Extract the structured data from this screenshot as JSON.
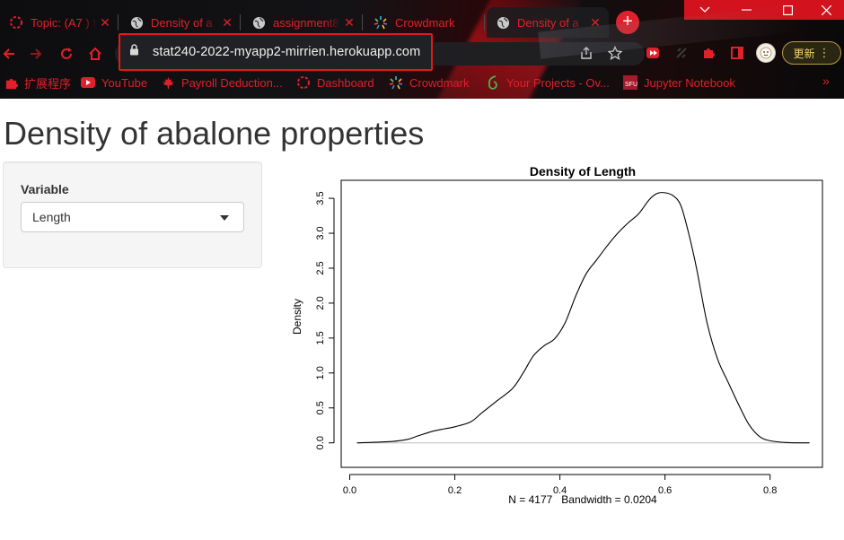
{
  "tabs": [
    {
      "title": "Topic: (A7 ) t",
      "icon": "ring-icon"
    },
    {
      "title": "Density of a",
      "icon": "globe-icon"
    },
    {
      "title": "assignment8",
      "icon": "globe-icon"
    },
    {
      "title": "Crowdmark",
      "icon": "crowdmark-icon"
    },
    {
      "title": "Density of a",
      "icon": "globe-icon"
    }
  ],
  "address_bar": {
    "url": "stat240-2022-myapp2-mirrien.herokuapp.com"
  },
  "update_button": {
    "label": "更新"
  },
  "bookmarks": [
    {
      "label": "扩展程序",
      "icon": "puzzle-icon"
    },
    {
      "label": "YouTube",
      "icon": "youtube-icon"
    },
    {
      "label": "Payroll Deduction...",
      "icon": "maple-leaf-icon"
    },
    {
      "label": "Dashboard",
      "icon": "ring-icon"
    },
    {
      "label": "Crowdmark",
      "icon": "crowdmark-icon"
    },
    {
      "label": "Your Projects - Ov...",
      "icon": "overleaf-icon"
    },
    {
      "label": "Jupyter Notebook",
      "icon": "sfu-icon"
    }
  ],
  "page": {
    "title": "Density of abalone properties",
    "variable_label": "Variable",
    "variable_selected": "Length"
  },
  "colors": {
    "chrome_accent": "#e0202a",
    "window_controls": "#d2121c",
    "highlight_box": "#e21a1a"
  },
  "chart_data": {
    "type": "line",
    "title": "Density of Length",
    "xlabel": "N = 4177   Bandwidth = 0.0204",
    "ylabel": "Density",
    "xlim": [
      0.0,
      0.88
    ],
    "ylim": [
      0.0,
      3.6
    ],
    "x_ticks": [
      0.0,
      0.2,
      0.4,
      0.6,
      0.8
    ],
    "x_tick_labels": [
      "0.0",
      "0.2",
      "0.4",
      "0.6",
      "0.8"
    ],
    "y_ticks": [
      0.0,
      0.5,
      1.0,
      1.5,
      2.0,
      2.5,
      3.0,
      3.5
    ],
    "y_tick_labels": [
      "0.0",
      "0.5",
      "1.0",
      "1.5",
      "2.0",
      "2.5",
      "3.0",
      "3.5"
    ],
    "grid": false,
    "series": [
      {
        "x": [
          0.014,
          0.08,
          0.11,
          0.13,
          0.16,
          0.18,
          0.2,
          0.23,
          0.25,
          0.28,
          0.31,
          0.33,
          0.35,
          0.37,
          0.39,
          0.41,
          0.43,
          0.45,
          0.47,
          0.49,
          0.51,
          0.53,
          0.55,
          0.57,
          0.585,
          0.6,
          0.615,
          0.63,
          0.645,
          0.66,
          0.68,
          0.7,
          0.72,
          0.74,
          0.76,
          0.78,
          0.8,
          0.83,
          0.86,
          0.875
        ],
        "y": [
          0.0,
          0.02,
          0.05,
          0.1,
          0.17,
          0.2,
          0.23,
          0.3,
          0.42,
          0.6,
          0.78,
          1.0,
          1.25,
          1.39,
          1.49,
          1.72,
          2.1,
          2.42,
          2.62,
          2.82,
          3.0,
          3.15,
          3.28,
          3.48,
          3.57,
          3.58,
          3.54,
          3.4,
          3.0,
          2.5,
          1.72,
          1.2,
          0.87,
          0.55,
          0.26,
          0.09,
          0.03,
          0.005,
          0.0,
          0.0
        ]
      }
    ]
  }
}
